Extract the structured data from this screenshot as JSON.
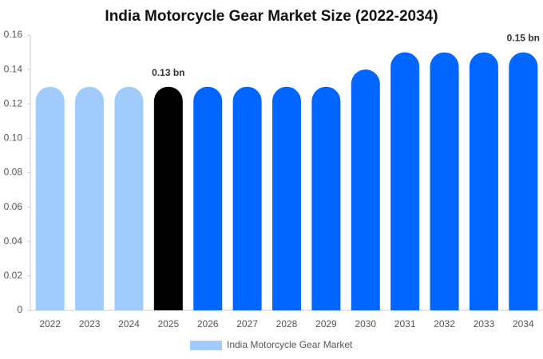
{
  "chart_data": {
    "type": "bar",
    "title": "India Motorcycle Gear Market Size (2022-2034)",
    "categories": [
      "2022",
      "2023",
      "2024",
      "2025",
      "2026",
      "2027",
      "2028",
      "2029",
      "2030",
      "2031",
      "2032",
      "2033",
      "2034"
    ],
    "series": [
      {
        "name": "India Motorcycle Gear Market",
        "color": "#a0cbfa",
        "values": [
          0.13,
          0.13,
          0.13,
          0.13,
          0.13,
          0.13,
          0.13,
          0.13,
          0.14,
          0.15,
          0.15,
          0.15,
          0.15
        ],
        "colors": [
          "#a0cbfa",
          "#a0cbfa",
          "#a0cbfa",
          "#000000",
          "#0066ff",
          "#0066ff",
          "#0066ff",
          "#0066ff",
          "#0066ff",
          "#0066ff",
          "#0066ff",
          "#0066ff",
          "#0066ff"
        ],
        "value_labels": [
          null,
          null,
          null,
          "0.13 bn",
          null,
          null,
          null,
          null,
          null,
          null,
          null,
          null,
          "0.15 bn"
        ]
      }
    ],
    "ylim": [
      0,
      0.16
    ],
    "yticks": [
      0,
      0.02,
      0.04,
      0.06,
      0.08,
      {
        "value": 0.1,
        "label": "0.10"
      },
      0.12,
      0.14,
      0.16
    ],
    "grid": false,
    "legend": "bottom"
  }
}
